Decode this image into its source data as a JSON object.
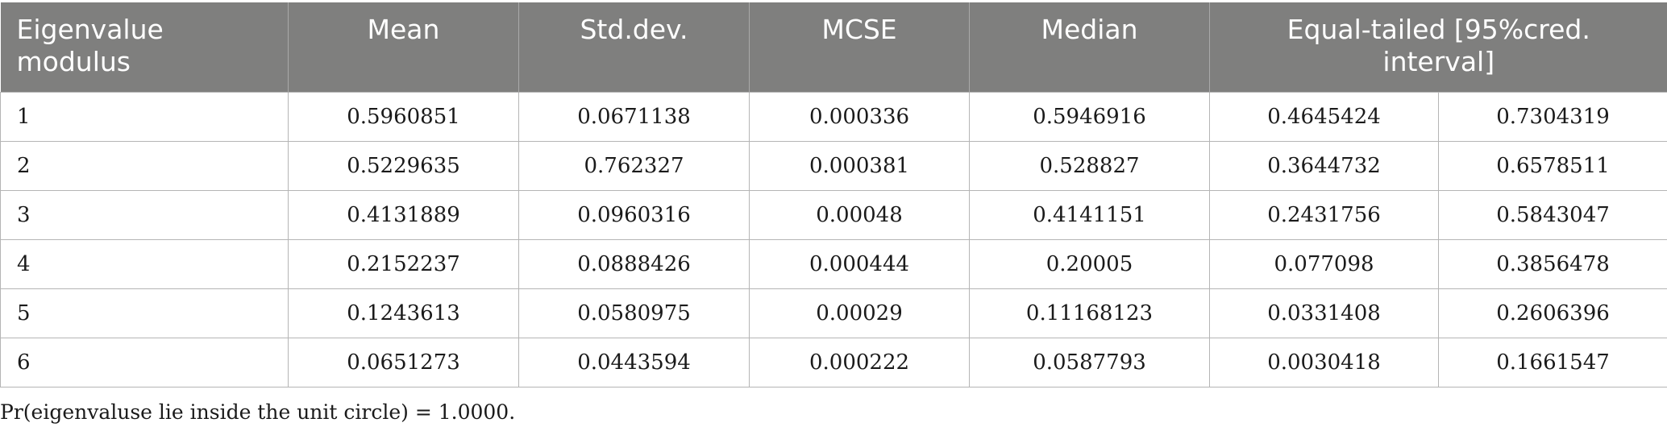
{
  "table": {
    "headers": {
      "eigenvalue": "Eigenvalue modulus",
      "mean": "Mean",
      "std": "Std.dev.",
      "mcse": "MCSE",
      "median": "Median",
      "interval": "Equal-tailed [95%cred. interval]"
    },
    "rows": [
      [
        "1",
        "0.5960851",
        "0.0671138",
        "0.000336",
        "0.5946916",
        "0.4645424",
        "0.7304319"
      ],
      [
        "2",
        "0.5229635",
        "0.762327",
        "0.000381",
        "0.528827",
        "0.3644732",
        "0.6578511"
      ],
      [
        "3",
        "0.4131889",
        "0.0960316",
        "0.00048",
        "0.4141151",
        "0.2431756",
        "0.5843047"
      ],
      [
        "4",
        "0.2152237",
        "0.0888426",
        "0.000444",
        "0.20005",
        "0.077098",
        "0.3856478"
      ],
      [
        "5",
        "0.1243613",
        "0.0580975",
        "0.00029",
        "0.11168123",
        "0.0331408",
        "0.2606396"
      ],
      [
        "6",
        "0.0651273",
        "0.0443594",
        "0.000222",
        "0.0587793",
        "0.0030418",
        "0.1661547"
      ]
    ]
  },
  "footnote": "Pr(eigenvaluse lie inside the unit circle) = 1.0000."
}
